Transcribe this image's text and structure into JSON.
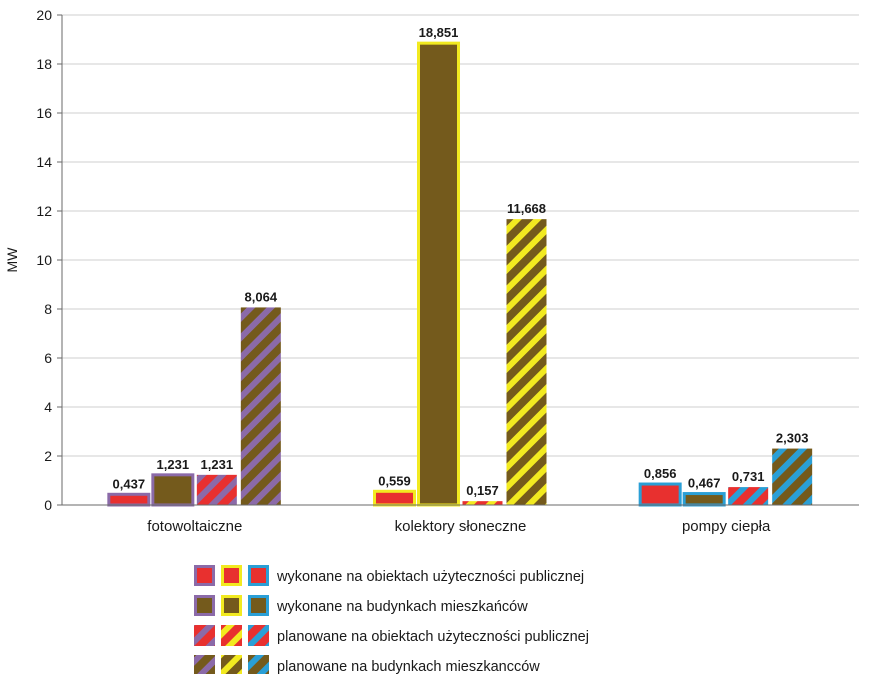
{
  "chart_data": {
    "type": "bar",
    "title": "",
    "xlabel": "",
    "ylabel": "MW",
    "ylim": [
      0,
      20
    ],
    "yticks": [
      0,
      2,
      4,
      6,
      8,
      10,
      12,
      14,
      16,
      18,
      20
    ],
    "grid": true,
    "legend_position": "bottom",
    "categories": [
      "fotowoltaiczne",
      "kolektory słoneczne",
      "pompy ciepła"
    ],
    "category_colors": [
      "#8b6aa8",
      "#f2ea20",
      "#2a9fd6"
    ],
    "series": [
      {
        "name": "wykonane na obiektach użyteczności publicznej",
        "values": [
          0.437,
          0.559,
          0.856
        ],
        "labels": [
          "0,437",
          "0,559",
          "0,856"
        ],
        "fill": "#e8302f",
        "style": "solid"
      },
      {
        "name": "wykonane na budynkach mieszkańców",
        "values": [
          1.231,
          18.851,
          0.467
        ],
        "labels": [
          "1,231",
          "18,851",
          "0,467"
        ],
        "fill": "#745a1c",
        "style": "solid"
      },
      {
        "name": "planowane na obiektach użyteczności publicznej",
        "values": [
          1.231,
          0.157,
          0.731
        ],
        "labels": [
          "1,231",
          "0,157",
          "0,731"
        ],
        "fill": "#e8302f",
        "style": "striped"
      },
      {
        "name": "planowane na budynkach mieszkancców",
        "values": [
          8.064,
          11.668,
          2.303
        ],
        "labels": [
          "8,064",
          "11,668",
          "2,303"
        ],
        "fill": "#745a1c",
        "style": "striped"
      }
    ]
  }
}
